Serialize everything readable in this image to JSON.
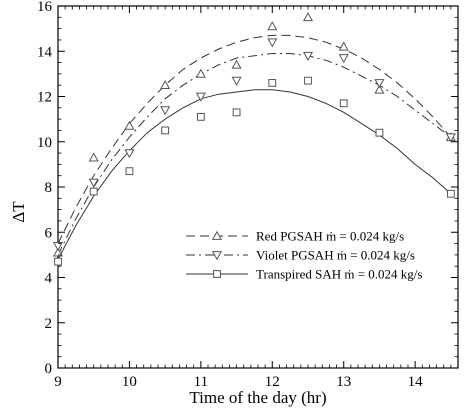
{
  "chart_data": {
    "type": "scatter",
    "xlabel": "Time of the day (hr)",
    "ylabel": "ΔT",
    "xlim": [
      9,
      14.6
    ],
    "ylim": [
      0,
      16
    ],
    "xticks": [
      9,
      10,
      11,
      12,
      13,
      14
    ],
    "yticks": [
      0,
      2,
      4,
      6,
      8,
      10,
      12,
      14,
      16
    ],
    "grid": false,
    "legend": "lower-right",
    "series": [
      {
        "name": "Red PGSAH  ṁ = 0.024 kg/s",
        "marker": "triangle-up",
        "line_style": "dashed",
        "x": [
          9,
          9.5,
          10,
          10.5,
          11,
          11.5,
          12,
          12.5,
          13,
          13.5,
          14.5
        ],
        "y": [
          5.1,
          9.3,
          10.7,
          12.5,
          13.0,
          13.4,
          15.1,
          15.5,
          14.2,
          12.3,
          10.2
        ],
        "fit_x": [
          9,
          9.25,
          9.5,
          9.75,
          10,
          10.25,
          10.5,
          10.75,
          11,
          11.25,
          11.5,
          11.75,
          12,
          12.25,
          12.5,
          12.75,
          13,
          13.25,
          13.5,
          13.75,
          14,
          14.25,
          14.5
        ],
        "fit_y": [
          5.5,
          7.1,
          8.5,
          9.7,
          10.8,
          11.7,
          12.5,
          13.2,
          13.7,
          14.1,
          14.4,
          14.6,
          14.7,
          14.7,
          14.6,
          14.4,
          14.1,
          13.7,
          13.2,
          12.6,
          11.9,
          11.1,
          10.2
        ]
      },
      {
        "name": "Violet PGSAH  ṁ = 0.024 kg/s",
        "marker": "triangle-down",
        "line_style": "dash-dot",
        "x": [
          9,
          9.5,
          10,
          10.5,
          11,
          11.5,
          12,
          12.5,
          13,
          13.5,
          14.5
        ],
        "y": [
          5.4,
          8.2,
          9.5,
          11.4,
          12.0,
          12.7,
          14.4,
          13.8,
          13.7,
          12.6,
          10.2
        ],
        "fit_x": [
          9,
          9.25,
          9.5,
          9.75,
          10,
          10.25,
          10.5,
          10.75,
          11,
          11.25,
          11.5,
          11.75,
          12,
          12.25,
          12.5,
          12.75,
          13,
          13.25,
          13.5,
          13.75,
          14,
          14.25,
          14.5
        ],
        "fit_y": [
          5.0,
          6.6,
          8.0,
          9.2,
          10.2,
          11.1,
          11.9,
          12.5,
          13.0,
          13.4,
          13.7,
          13.8,
          13.9,
          13.9,
          13.8,
          13.6,
          13.3,
          12.9,
          12.5,
          12.0,
          11.4,
          10.8,
          10.2
        ]
      },
      {
        "name": "Transpired SAH  ṁ = 0.024 kg/s",
        "marker": "square",
        "line_style": "solid",
        "x": [
          9,
          9.5,
          10,
          10.5,
          11,
          11.5,
          12,
          12.5,
          13,
          13.5,
          14.5
        ],
        "y": [
          4.7,
          7.8,
          8.7,
          10.5,
          11.1,
          11.3,
          12.6,
          12.7,
          11.7,
          10.4,
          7.7
        ],
        "fit_x": [
          9,
          9.25,
          9.5,
          9.75,
          10,
          10.25,
          10.5,
          10.75,
          11,
          11.25,
          11.5,
          11.75,
          12,
          12.25,
          12.5,
          12.75,
          13,
          13.25,
          13.5,
          13.75,
          14,
          14.25,
          14.5
        ],
        "fit_y": [
          4.8,
          6.3,
          7.6,
          8.7,
          9.6,
          10.4,
          11.0,
          11.5,
          11.9,
          12.1,
          12.2,
          12.3,
          12.3,
          12.2,
          12.0,
          11.7,
          11.3,
          10.8,
          10.3,
          9.7,
          9.0,
          8.4,
          7.7
        ]
      }
    ]
  }
}
